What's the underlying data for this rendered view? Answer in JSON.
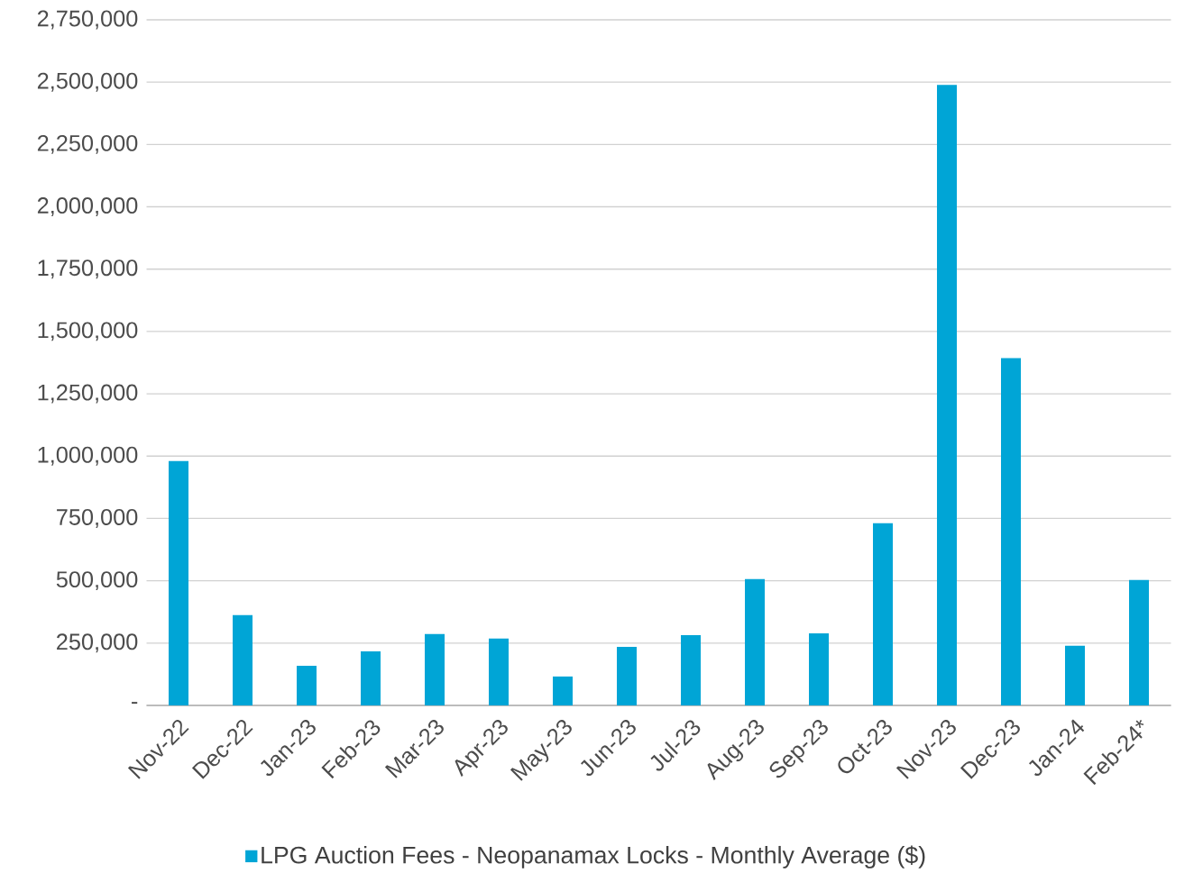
{
  "chart_data": {
    "type": "bar",
    "categories": [
      "Nov-22",
      "Dec-22",
      "Jan-23",
      "Feb-23",
      "Mar-23",
      "Apr-23",
      "May-23",
      "Jun-23",
      "Jul-23",
      "Aug-23",
      "Sep-23",
      "Oct-23",
      "Nov-23",
      "Dec-23",
      "Jan-24",
      "Feb-24*"
    ],
    "series": [
      {
        "name": "LPG Auction Fees - Neopanamax Locks - Monthly Average ($)",
        "color": "#00a5d6",
        "values": [
          980000,
          362000,
          159000,
          217000,
          286000,
          268000,
          116000,
          235000,
          282000,
          507000,
          289000,
          731000,
          2489000,
          1393000,
          239000,
          503000
        ]
      }
    ],
    "ylim": [
      0,
      2750000
    ],
    "yticks": [
      {
        "value": 0,
        "label": "-"
      },
      {
        "value": 250000,
        "label": "250,000"
      },
      {
        "value": 500000,
        "label": "500,000"
      },
      {
        "value": 750000,
        "label": "750,000"
      },
      {
        "value": 1000000,
        "label": "1,000,000"
      },
      {
        "value": 1250000,
        "label": "1,250,000"
      },
      {
        "value": 1500000,
        "label": "1,500,000"
      },
      {
        "value": 1750000,
        "label": "1,750,000"
      },
      {
        "value": 2000000,
        "label": "2,000,000"
      },
      {
        "value": 2250000,
        "label": "2,250,000"
      },
      {
        "value": 2500000,
        "label": "2,500,000"
      },
      {
        "value": 2750000,
        "label": "2,750,000"
      }
    ],
    "grid": "y",
    "legend": "bottom"
  }
}
